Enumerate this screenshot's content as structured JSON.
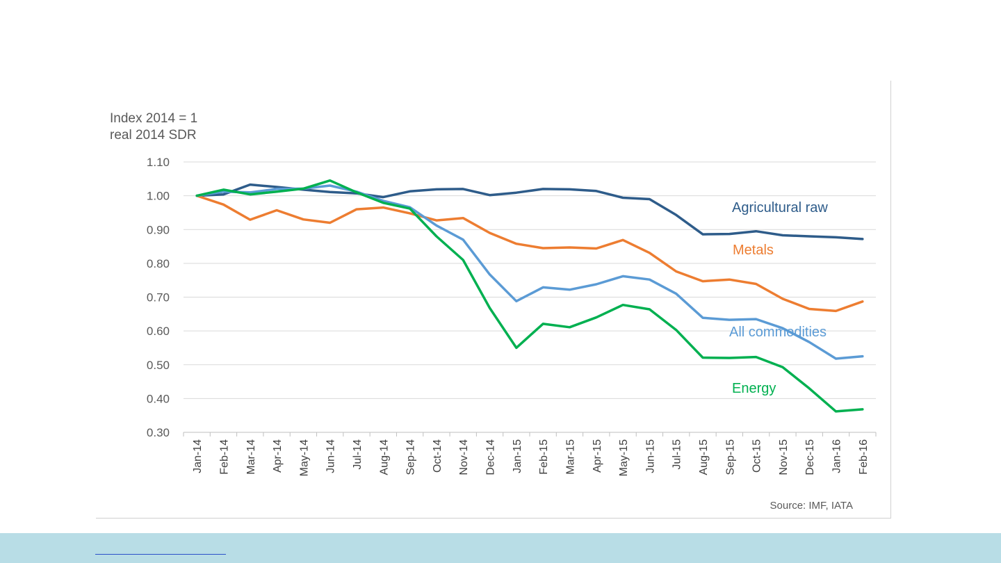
{
  "chart_data": {
    "type": "line",
    "ylabel_lines": [
      "Index 2014 = 1",
      "real  2014 SDR"
    ],
    "source": "Source: IMF, IATA",
    "ylim": [
      0.3,
      1.1
    ],
    "y_ticks": [
      "1.10",
      "1.00",
      "0.90",
      "0.80",
      "0.70",
      "0.60",
      "0.50",
      "0.40",
      "0.30"
    ],
    "grid": true,
    "categories": [
      "Jan-14",
      "Feb-14",
      "Mar-14",
      "Apr-14",
      "May-14",
      "Jun-14",
      "Jul-14",
      "Aug-14",
      "Sep-14",
      "Oct-14",
      "Nov-14",
      "Dec-14",
      "Jan-15",
      "Feb-15",
      "Mar-15",
      "Apr-15",
      "May-15",
      "Jun-15",
      "Jul-15",
      "Aug-15",
      "Sep-15",
      "Oct-15",
      "Nov-15",
      "Dec-15",
      "Jan-16",
      "Feb-16"
    ],
    "series": [
      {
        "name": "Agricultural raw",
        "color": "#2e5c8a",
        "values": [
          1.0,
          1.004,
          1.033,
          1.026,
          1.018,
          1.011,
          1.007,
          0.996,
          1.013,
          1.019,
          1.02,
          1.002,
          1.009,
          1.02,
          1.019,
          1.014,
          0.994,
          0.99,
          0.943,
          0.886,
          0.887,
          0.895,
          0.883,
          0.88,
          0.877,
          0.872
        ]
      },
      {
        "name": "Metals",
        "color": "#ed7d31",
        "values": [
          1.0,
          0.974,
          0.929,
          0.957,
          0.93,
          0.92,
          0.96,
          0.965,
          0.948,
          0.927,
          0.934,
          0.89,
          0.858,
          0.845,
          0.847,
          0.844,
          0.869,
          0.831,
          0.776,
          0.747,
          0.752,
          0.739,
          0.695,
          0.665,
          0.659,
          0.687
        ]
      },
      {
        "name": "All commodities",
        "color": "#5b9bd5",
        "values": [
          1.0,
          1.012,
          1.01,
          1.02,
          1.021,
          1.03,
          1.012,
          0.985,
          0.966,
          0.912,
          0.87,
          0.767,
          0.688,
          0.729,
          0.722,
          0.738,
          0.762,
          0.752,
          0.71,
          0.639,
          0.633,
          0.635,
          0.608,
          0.567,
          0.518,
          0.525
        ]
      },
      {
        "name": "Energy",
        "color": "#00b050",
        "values": [
          1.0,
          1.018,
          1.004,
          1.012,
          1.021,
          1.045,
          1.01,
          0.979,
          0.962,
          0.88,
          0.81,
          0.668,
          0.55,
          0.621,
          0.611,
          0.64,
          0.677,
          0.664,
          0.603,
          0.521,
          0.52,
          0.523,
          0.493,
          0.43,
          0.362,
          0.368
        ]
      }
    ]
  }
}
